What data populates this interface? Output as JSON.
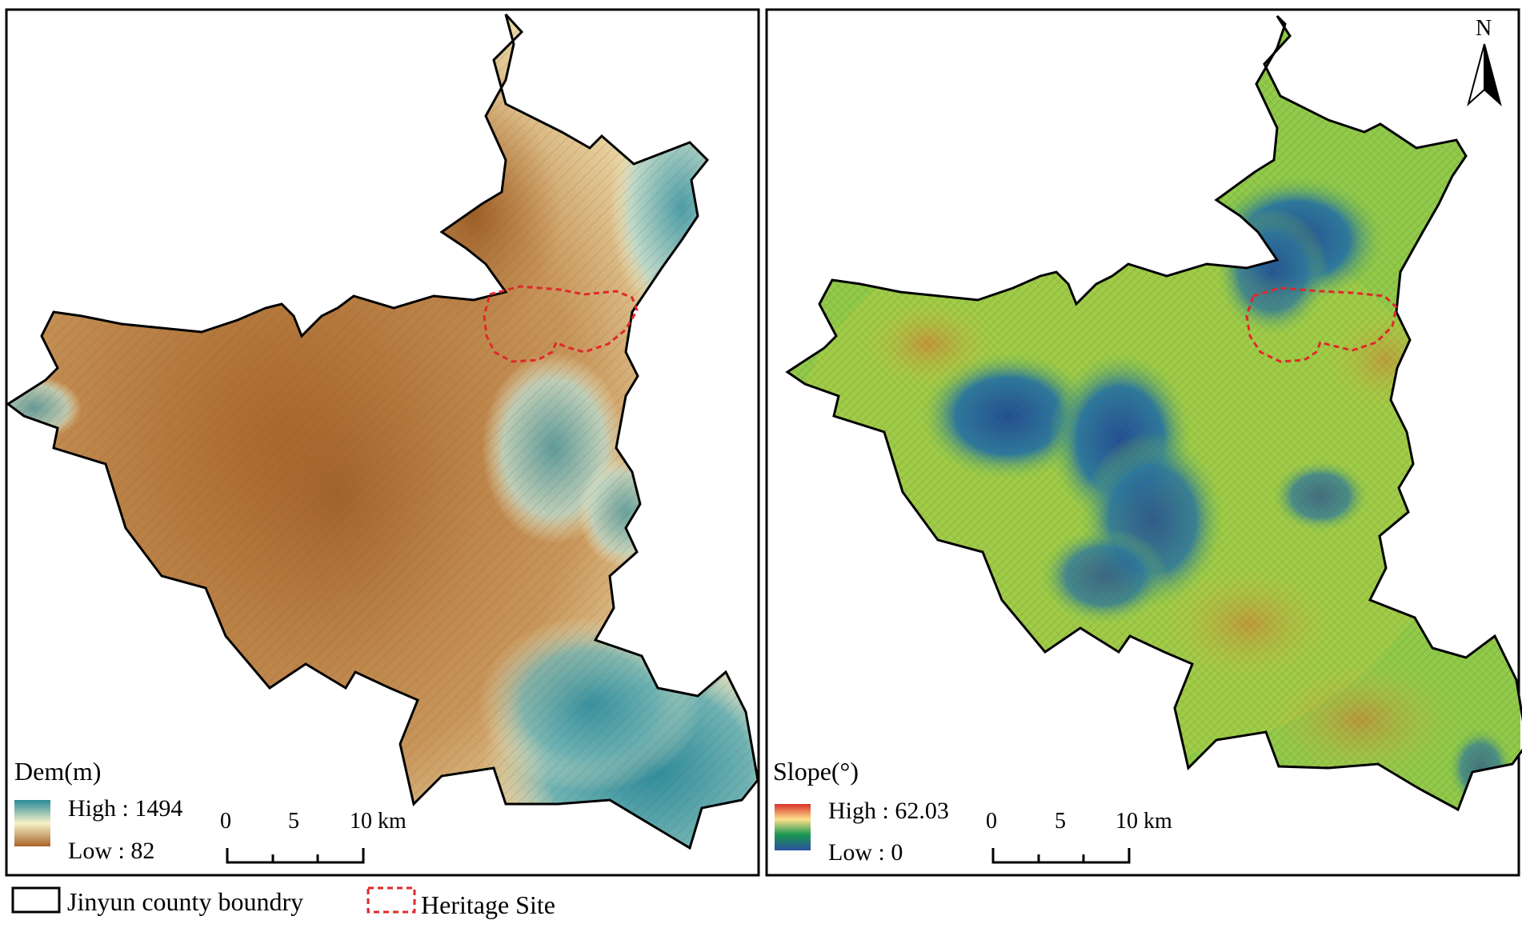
{
  "left_panel": {
    "legend_title": "Dem(m)",
    "high_label": "High : 1494",
    "low_label": "Low : 82",
    "ramp_colors": [
      "#2b8a9a",
      "#f5f2c8",
      "#a8652a"
    ]
  },
  "right_panel": {
    "legend_title": "Slope(°)",
    "high_label": "High : 62.03",
    "low_label": "Low : 0",
    "ramp_colors": [
      "#d73027",
      "#fee08b",
      "#1a9850",
      "#2c4fa0"
    ]
  },
  "scale_bar": {
    "ticks": [
      "0",
      "5",
      "10 km"
    ]
  },
  "north_arrow": {
    "label": "N"
  },
  "legend": {
    "boundary_label": "Jinyun county boundry",
    "heritage_label": "Heritage Site"
  },
  "colors": {
    "dem_low": "#a8652a",
    "dem_mid": "#f5f2c8",
    "dem_high": "#2b8a9a",
    "slope_green": "#7ec850",
    "slope_blue": "#1f5fa0",
    "slope_red": "#d73027",
    "heritage": "#e0282a"
  }
}
